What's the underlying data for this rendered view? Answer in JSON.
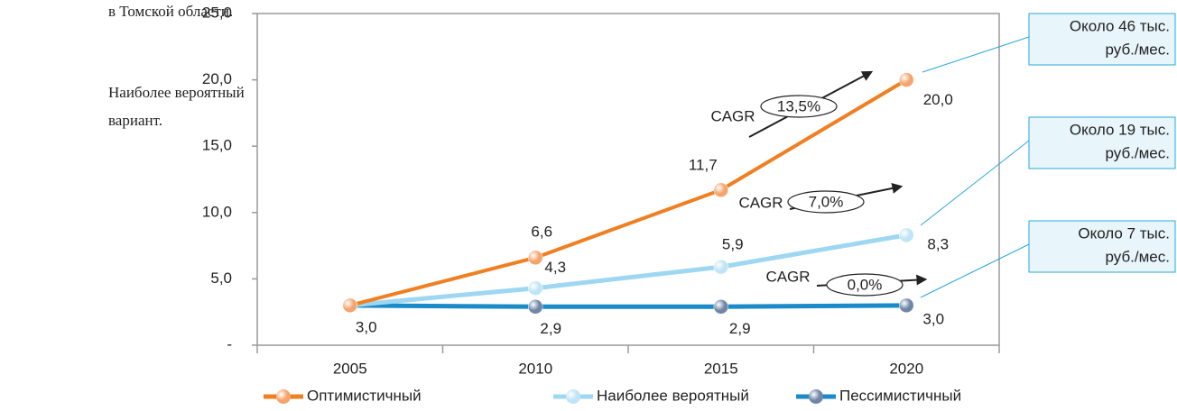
{
  "side_text": [
    "в Томской области.",
    "Наиболее вероятный",
    "вариант."
  ],
  "chart_data": {
    "type": "line",
    "categories": [
      "2005",
      "2010",
      "2015",
      "2020"
    ],
    "ylim": [
      0,
      25
    ],
    "yticks": [
      {
        "value": 0,
        "label": "-"
      },
      {
        "value": 5,
        "label": "5,0"
      },
      {
        "value": 10,
        "label": "10,0"
      },
      {
        "value": 15,
        "label": "15,0"
      },
      {
        "value": 20,
        "label": "20,0"
      },
      {
        "value": 25,
        "label": "25,0"
      }
    ],
    "series": [
      {
        "name": "Оптимистичный",
        "color": "#f07f22",
        "marker_color": "#f4a46c",
        "values": [
          3.0,
          6.6,
          11.7,
          20.0
        ],
        "value_labels": [
          null,
          "6,6",
          "11,7",
          "20,0"
        ]
      },
      {
        "name": "Наиболее  вероятный",
        "color": "#9dd7f2",
        "marker_color": "#bfe4f6",
        "values": [
          3.0,
          4.3,
          5.9,
          8.3
        ],
        "value_labels": [
          null,
          "4,3",
          "5,9",
          "8,3"
        ]
      },
      {
        "name": "Пессимистичный",
        "color": "#1a8ac8",
        "marker_color": "#6f86a6",
        "values": [
          3.0,
          2.9,
          2.9,
          3.0
        ],
        "value_labels": [
          "3,0",
          "2,9",
          "2,9",
          "3,0"
        ]
      }
    ],
    "annotations": [
      {
        "label": "CAGR",
        "value": "13,5%"
      },
      {
        "label": "CAGR",
        "value": "7,0%"
      },
      {
        "label": "CAGR",
        "value": "0,0%"
      }
    ],
    "callouts": [
      [
        "Около 46 тыс.",
        "руб./мес."
      ],
      [
        "Около 19 тыс.",
        "руб./мес."
      ],
      [
        "Около 7 тыс.",
        "руб./мес."
      ]
    ]
  }
}
